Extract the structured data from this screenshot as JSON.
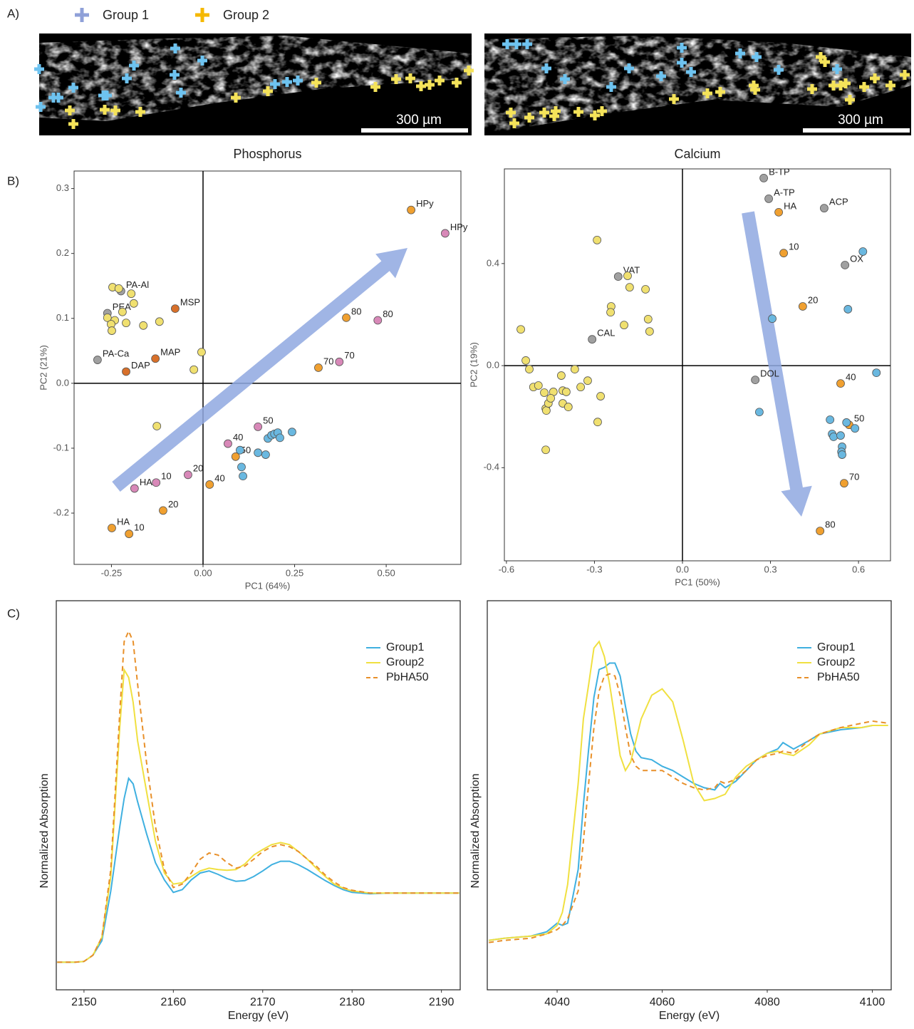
{
  "panel_labels": [
    "A)",
    "B)",
    "C)"
  ],
  "image_legend": [
    {
      "name": "Group 1",
      "color": "#8fa0d8"
    },
    {
      "name": "Group 2",
      "color": "#f5b800"
    }
  ],
  "scale_bars": [
    "300 µm",
    "300 µm"
  ],
  "chart_data": [
    {
      "type": "scatter",
      "title": "Phosphorus",
      "xlabel": "PC1 (64%)",
      "ylabel": "PC2 (21%)",
      "xlim": [
        -0.352,
        0.704
      ],
      "ylim": [
        -0.279,
        0.327
      ],
      "xticks": [
        -0.25,
        {
          "value": 0,
          "label": "0.00"
        },
        0.25,
        {
          "value": 0.5,
          "label": "0.50"
        }
      ],
      "yticks": [
        -0.2,
        -0.1,
        {
          "value": 0,
          "label": "0.0"
        },
        0.1,
        0.2,
        0.3
      ],
      "zero_lines": true,
      "series": [
        {
          "color": "#a0a0a0",
          "x": [
            -0.288,
            -0.261,
            -0.224
          ],
          "y": [
            0.036,
            0.108,
            0.142
          ],
          "labels": [
            "PA-Ca",
            "PEA",
            "PA-Al"
          ]
        },
        {
          "color": "#f0a030",
          "x": [
            0.568,
            0.391,
            0.315,
            0.089,
            0.018,
            -0.109,
            -0.202,
            -0.249
          ],
          "y": [
            0.267,
            0.101,
            0.024,
            -0.113,
            -0.156,
            -0.196,
            -0.232,
            -0.223
          ],
          "labels": [
            "HPy",
            "80",
            "70",
            "50",
            "40",
            "20",
            "10",
            "HA"
          ]
        },
        {
          "color": "#d8702a",
          "x": [
            -0.076,
            -0.13,
            -0.21
          ],
          "y": [
            0.115,
            0.038,
            0.018
          ],
          "labels": [
            "MSP",
            "MAP",
            "DAP"
          ]
        },
        {
          "color": "#d888b8",
          "x": [
            0.661,
            0.477,
            0.372,
            0.15,
            0.068,
            -0.041,
            -0.128,
            -0.187
          ],
          "y": [
            0.231,
            0.097,
            0.033,
            -0.067,
            -0.093,
            -0.141,
            -0.153,
            -0.162
          ],
          "labels": [
            "HPy",
            "80",
            "70",
            "50",
            "40",
            "20",
            "10",
            "HA"
          ]
        },
        {
          "color": "#f0e070",
          "x": [
            -0.247,
            -0.23,
            -0.196,
            -0.189,
            -0.22,
            -0.261,
            -0.241,
            -0.251,
            -0.21,
            -0.249,
            -0.163,
            -0.119,
            -0.004,
            -0.025,
            -0.126
          ],
          "y": [
            0.148,
            0.146,
            0.138,
            0.123,
            0.11,
            0.101,
            0.097,
            0.091,
            0.093,
            0.081,
            0.089,
            0.095,
            0.048,
            0.021,
            -0.066
          ]
        },
        {
          "color": "#6ab8e0",
          "x": [
            0.101,
            0.105,
            0.109,
            0.15,
            0.171,
            0.177,
            0.187,
            0.195,
            0.204,
            0.21,
            0.243
          ],
          "y": [
            -0.103,
            -0.129,
            -0.143,
            -0.107,
            -0.11,
            -0.085,
            -0.08,
            -0.078,
            -0.076,
            -0.084,
            -0.075
          ]
        }
      ]
    },
    {
      "type": "scatter",
      "title": "Calcium",
      "xlabel": "PC1 (50%)",
      "ylabel": "PC2 (19%)",
      "xlim": [
        -0.607,
        0.709
      ],
      "ylim": [
        -0.765,
        0.771
      ],
      "xticks": [
        -0.6,
        -0.3,
        {
          "value": 0,
          "label": "0.0"
        },
        0.3,
        0.6
      ],
      "yticks": [
        -0.4,
        {
          "value": 0,
          "label": "0.0"
        },
        0.4
      ],
      "zero_lines": true,
      "series": [
        {
          "color": "#a0a0a0",
          "x": [
            0.277,
            0.294,
            0.483,
            0.554,
            -0.219,
            -0.308,
            0.248
          ],
          "y": [
            0.735,
            0.654,
            0.617,
            0.394,
            0.349,
            0.103,
            -0.056
          ],
          "labels": [
            "B-TP",
            "A-TP",
            "ACP",
            "OX",
            "VAT",
            "CAL",
            "DOL"
          ]
        },
        {
          "color": "#f0a030",
          "x": [
            0.328,
            0.345,
            0.41,
            0.539,
            0.568,
            0.551,
            0.469
          ],
          "y": [
            0.601,
            0.441,
            0.232,
            -0.07,
            -0.232,
            -0.461,
            -0.648
          ],
          "labels": [
            "HA",
            "10",
            "20",
            "40",
            "50",
            "70",
            "80"
          ]
        },
        {
          "color": "#f0e070",
          "x": [
            -0.291,
            -0.187,
            -0.18,
            -0.126,
            -0.243,
            -0.245,
            -0.199,
            -0.117,
            -0.112,
            -0.551,
            -0.534,
            -0.522,
            -0.508,
            -0.491,
            -0.471,
            -0.44,
            -0.413,
            -0.408,
            -0.396,
            -0.367,
            -0.347,
            -0.323,
            -0.279,
            -0.289,
            -0.466,
            -0.464,
            -0.457,
            -0.449,
            -0.408,
            -0.389,
            -0.466
          ],
          "y": [
            0.492,
            0.352,
            0.307,
            0.299,
            0.232,
            0.209,
            0.159,
            0.182,
            0.134,
            0.142,
            0.02,
            -0.014,
            -0.084,
            -0.078,
            -0.106,
            -0.103,
            -0.039,
            -0.098,
            -0.103,
            -0.014,
            -0.084,
            -0.059,
            -0.12,
            -0.221,
            -0.168,
            -0.176,
            -0.148,
            -0.128,
            -0.148,
            -0.162,
            -0.33
          ]
        },
        {
          "color": "#6ab8e0",
          "x": [
            0.615,
            0.564,
            0.306,
            0.661,
            0.262,
            0.503,
            0.51,
            0.515,
            0.539,
            0.559,
            0.588,
            0.544,
            0.542,
            0.544
          ],
          "y": [
            0.447,
            0.221,
            0.184,
            -0.028,
            -0.182,
            -0.212,
            -0.268,
            -0.279,
            -0.274,
            -0.223,
            -0.246,
            -0.318,
            -0.338,
            -0.349
          ]
        }
      ]
    },
    {
      "type": "line",
      "xlabel": "Energy (eV)",
      "ylabel": "Normalized Absorption",
      "xlim": [
        2146.9,
        2192.1
      ],
      "ylim": [
        -0.4,
        5.23
      ],
      "xticks": [
        2150,
        2160,
        2170,
        2180,
        2190
      ],
      "legend": "upper right",
      "x": [
        2147,
        2149,
        2150,
        2151,
        2152,
        2153,
        2154,
        2154.5,
        2155,
        2155.5,
        2156,
        2157,
        2158,
        2159,
        2160,
        2161,
        2162,
        2163,
        2164,
        2165,
        2166,
        2167,
        2168,
        2169,
        2170,
        2171,
        2172,
        2173,
        2174,
        2175,
        2176,
        2177,
        2178,
        2179,
        2180,
        2182,
        2184,
        2186,
        2188,
        2190,
        2192
      ],
      "series": [
        {
          "name": "Group1",
          "color": "#3fb0e0",
          "style": "solid",
          "values": [
            0,
            0,
            0.01,
            0.1,
            0.31,
            1.03,
            1.96,
            2.37,
            2.66,
            2.58,
            2.32,
            1.86,
            1.44,
            1.19,
            1.01,
            1.05,
            1.19,
            1.29,
            1.32,
            1.27,
            1.21,
            1.17,
            1.18,
            1.24,
            1.32,
            1.41,
            1.46,
            1.46,
            1.41,
            1.34,
            1.26,
            1.18,
            1.11,
            1.05,
            1.01,
            0.99,
            1,
            1,
            1,
            1,
            1
          ]
        },
        {
          "name": "Group2",
          "color": "#f0e040",
          "style": "solid",
          "values": [
            0,
            0,
            0.01,
            0.1,
            0.36,
            1.24,
            3.4,
            4.23,
            4.12,
            3.76,
            3.2,
            2.47,
            1.75,
            1.29,
            1.13,
            1.15,
            1.24,
            1.32,
            1.36,
            1.34,
            1.33,
            1.34,
            1.42,
            1.55,
            1.63,
            1.7,
            1.73,
            1.7,
            1.6,
            1.49,
            1.36,
            1.24,
            1.13,
            1.07,
            1.03,
            1,
            1,
            1,
            1,
            1,
            1
          ]
        },
        {
          "name": "PbHA50",
          "color": "#e8902a",
          "style": "dashed",
          "values": [
            0,
            0,
            0.01,
            0.1,
            0.36,
            1.34,
            3.61,
            4.64,
            4.79,
            4.64,
            4.02,
            2.89,
            1.96,
            1.34,
            1.08,
            1.13,
            1.29,
            1.49,
            1.58,
            1.55,
            1.44,
            1.36,
            1.39,
            1.49,
            1.6,
            1.67,
            1.7,
            1.67,
            1.6,
            1.49,
            1.39,
            1.26,
            1.16,
            1.08,
            1.04,
            1,
            1,
            1,
            1,
            1,
            1
          ]
        }
      ]
    },
    {
      "type": "line",
      "xlabel": "Energy (eV)",
      "ylabel": "Normalized Absorption",
      "xlim": [
        4026.7,
        4103.6
      ],
      "ylim": [
        -0.23,
        1.58
      ],
      "xticks": [
        4040,
        4060,
        4080,
        4100
      ],
      "legend": "upper right",
      "x": [
        4027,
        4030,
        4035,
        4038,
        4040,
        4041,
        4042,
        4044,
        4045,
        4046,
        4047,
        4048,
        4049,
        4050,
        4051,
        4052,
        4053,
        4054,
        4055,
        4056,
        4058,
        4060,
        4062,
        4064,
        4066,
        4068,
        4070,
        4071,
        4072,
        4074,
        4076,
        4078,
        4080,
        4082,
        4083,
        4085,
        4088,
        4090,
        4094,
        4098,
        4100,
        4103
      ],
      "series": [
        {
          "name": "Group1",
          "color": "#3fb0e0",
          "style": "solid",
          "values": [
            0,
            0.01,
            0.02,
            0.04,
            0.08,
            0.07,
            0.08,
            0.33,
            0.63,
            0.89,
            1.13,
            1.26,
            1.27,
            1.29,
            1.29,
            1.23,
            1.09,
            0.96,
            0.88,
            0.85,
            0.84,
            0.81,
            0.79,
            0.76,
            0.73,
            0.71,
            0.7,
            0.73,
            0.71,
            0.74,
            0.79,
            0.84,
            0.87,
            0.89,
            0.92,
            0.89,
            0.93,
            0.96,
            0.98,
            0.99,
            1,
            1
          ]
        },
        {
          "name": "Group2",
          "color": "#f0e040",
          "style": "solid",
          "values": [
            0,
            0.01,
            0.02,
            0.03,
            0.07,
            0.13,
            0.26,
            0.73,
            1.03,
            1.19,
            1.36,
            1.39,
            1.32,
            1.19,
            1.03,
            0.86,
            0.79,
            0.83,
            0.93,
            1.03,
            1.14,
            1.17,
            1.11,
            0.93,
            0.73,
            0.65,
            0.66,
            0.67,
            0.68,
            0.76,
            0.81,
            0.84,
            0.87,
            0.88,
            0.87,
            0.86,
            0.91,
            0.96,
            0.99,
            0.99,
            1,
            1
          ]
        },
        {
          "name": "PbHA50",
          "color": "#e8902a",
          "style": "dashed",
          "values": [
            -0.01,
            0,
            0.01,
            0.03,
            0.05,
            0.07,
            0.1,
            0.23,
            0.46,
            0.73,
            0.99,
            1.16,
            1.23,
            1.24,
            1.23,
            1.14,
            0.99,
            0.86,
            0.81,
            0.79,
            0.79,
            0.79,
            0.76,
            0.73,
            0.71,
            0.7,
            0.71,
            0.74,
            0.73,
            0.75,
            0.79,
            0.84,
            0.86,
            0.87,
            0.88,
            0.87,
            0.93,
            0.96,
            0.99,
            1.01,
            1.02,
            1.01
          ]
        }
      ]
    }
  ]
}
